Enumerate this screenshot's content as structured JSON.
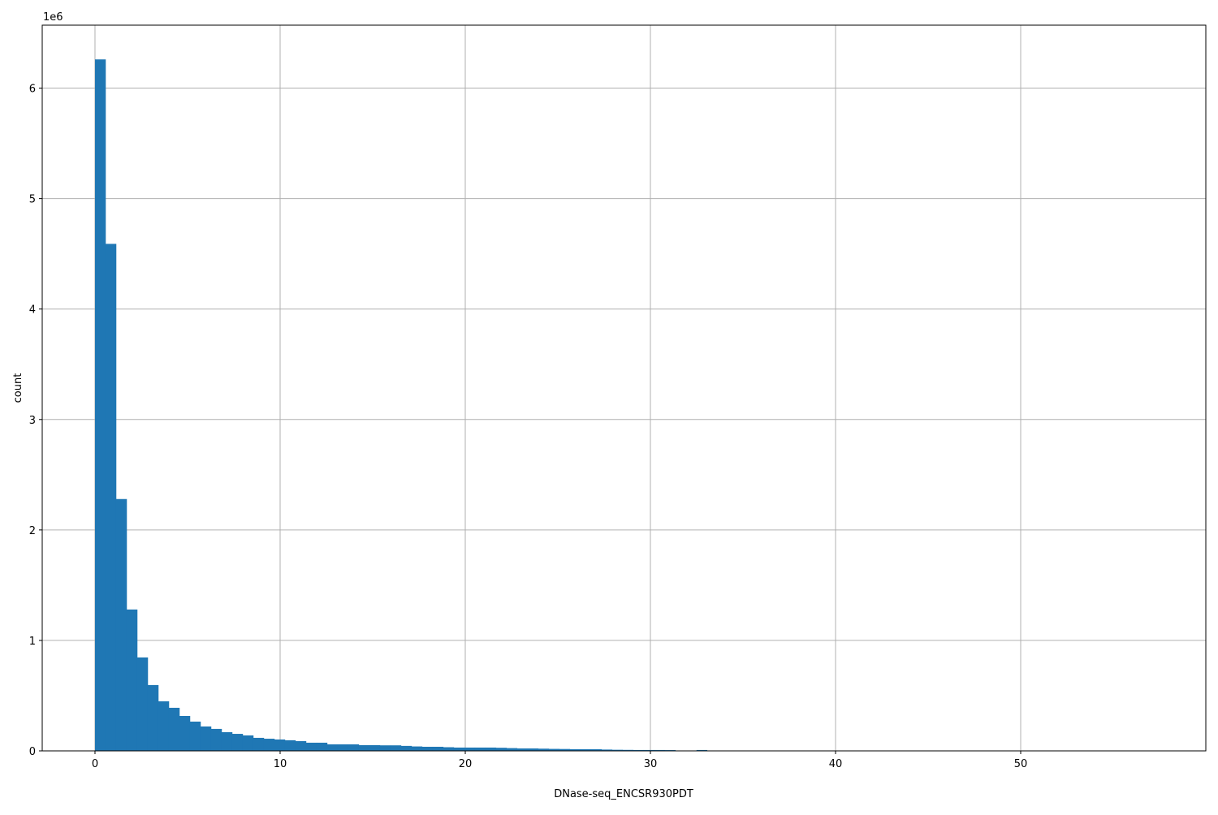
{
  "chart_data": {
    "type": "bar",
    "subtype": "histogram",
    "xlabel": "DNase-seq_ENCSR930PDT",
    "ylabel": "count",
    "y_offset_label": "1e6",
    "xlim": [
      -2.85,
      60.0
    ],
    "ylim": [
      0,
      6570000
    ],
    "xticks": [
      0,
      10,
      20,
      30,
      40,
      50
    ],
    "yticks": [
      0,
      1,
      2,
      3,
      4,
      5,
      6
    ],
    "grid": true,
    "bar_color": "#1f77b4",
    "bin_start": 0,
    "bin_width": 0.57,
    "values": [
      6260000,
      4590000,
      2280000,
      1280000,
      846000,
      596000,
      449000,
      390000,
      316000,
      265000,
      221000,
      199000,
      169000,
      154000,
      140000,
      118000,
      110000,
      103000,
      96000,
      88000,
      74000,
      74000,
      59000,
      59000,
      59000,
      52000,
      52000,
      50000,
      50000,
      45000,
      40000,
      37000,
      37000,
      33000,
      30000,
      30000,
      30000,
      30000,
      28000,
      25000,
      22000,
      22000,
      20000,
      18000,
      17000,
      15000,
      15000,
      15000,
      12000,
      10000,
      9000,
      8000,
      8000,
      8000,
      7000,
      0,
      0,
      8000,
      0,
      0,
      0,
      0,
      0,
      0,
      0,
      0,
      0,
      0,
      0,
      0,
      0,
      0,
      0,
      0,
      0,
      0,
      0,
      0,
      0,
      0,
      0,
      0,
      0,
      0,
      0,
      0,
      0,
      0,
      0,
      0,
      0,
      0,
      0,
      0,
      0,
      0,
      0,
      0,
      0,
      0
    ]
  }
}
